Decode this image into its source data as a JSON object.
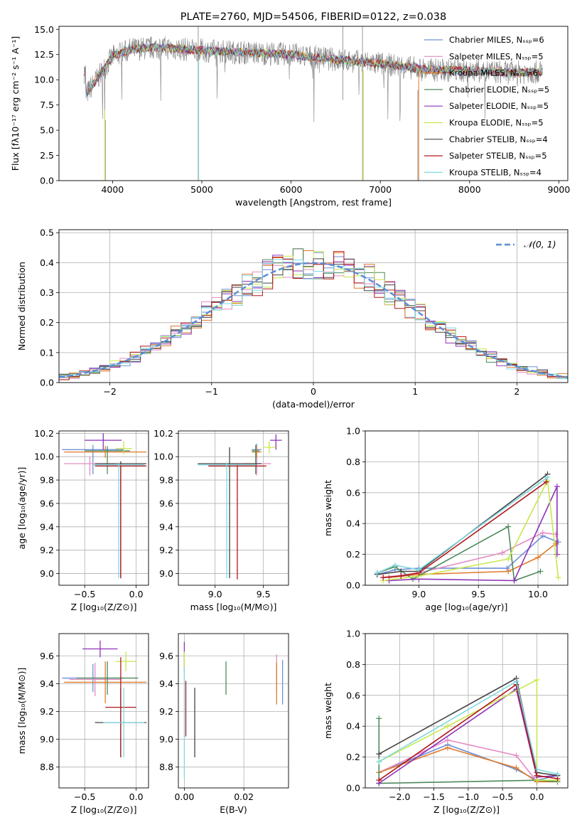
{
  "chart_data": [
    {
      "type": "line",
      "title": "PLATE=2760, MJD=54506, FIBERID=0122, z=0.038",
      "xlabel": "wavelength [Angstrom, rest frame]",
      "ylabel": "Flux [fλ10⁻¹⁷ erg cm⁻² s⁻¹ A⁻¹]",
      "xlim": [
        3400,
        9100
      ],
      "ylim": [
        0,
        15.3
      ],
      "xticks": [
        4000,
        5000,
        6000,
        7000,
        8000,
        9000
      ],
      "yticks": [
        0.0,
        2.5,
        5.0,
        7.5,
        10.0,
        12.5,
        15.0
      ],
      "legend_position": "top-right",
      "series": [
        {
          "name": "Chabrier MILES, Nₛₛₚ=6",
          "color": "#6f8fd7"
        },
        {
          "name": "Salpeter MILES, Nₛₛₚ=5",
          "color": "#e58bc4"
        },
        {
          "name": "Kroupa MILES, Nₛₛₚ=6",
          "color": "#e07a2a"
        },
        {
          "name": "Chabrier ELODIE, Nₛₛₚ=5",
          "color": "#4d8a5c"
        },
        {
          "name": "Salpeter ELODIE, Nₛₛₚ=5",
          "color": "#8e32b8"
        },
        {
          "name": "Kroupa ELODIE, Nₛₛₚ=5",
          "color": "#c7e84b"
        },
        {
          "name": "Chabrier STELIB, Nₛₛₚ=4",
          "color": "#444444"
        },
        {
          "name": "Salpeter STELIB, Nₛₛₚ=5",
          "color": "#b0181c"
        },
        {
          "name": "Kroupa STELIB, Nₛₛₚ=4",
          "color": "#7fd8e0"
        }
      ],
      "data_envelope": {
        "x": [
          3700,
          3900,
          4000,
          4200,
          4500,
          5000,
          5500,
          6000,
          6500,
          7000,
          7500,
          8000,
          8500,
          8800
        ],
        "y": [
          8.5,
          11.0,
          12.3,
          13.0,
          13.2,
          12.9,
          12.7,
          12.5,
          12.0,
          11.6,
          11.0,
          10.9,
          10.7,
          10.8
        ]
      }
    },
    {
      "type": "line",
      "xlabel": "(data-model)/error",
      "ylabel": "Normed distribution",
      "xlim": [
        -2.5,
        2.5
      ],
      "ylim": [
        0,
        0.51
      ],
      "xticks": [
        -2,
        -1,
        0,
        1,
        2
      ],
      "yticks": [
        0.0,
        0.1,
        0.2,
        0.3,
        0.4,
        0.5
      ],
      "legend_position": "top-right",
      "gaussian_label": "𝒩(0, 1)",
      "gaussian": {
        "mean": 0,
        "sigma": 1,
        "color": "#5b8fd5"
      },
      "histogram_bin_width": 0.1,
      "histogram_series_colors": [
        "#6f8fd7",
        "#e58bc4",
        "#e07a2a",
        "#4d8a5c",
        "#8e32b8",
        "#c7e84b",
        "#444444",
        "#b0181c",
        "#7fd8e0"
      ]
    },
    {
      "type": "scatter",
      "xlabel": "Z [log₁₀(Z/Z⊙)]",
      "ylabel": "age  [log₁₀(age/yr)]",
      "xlim": [
        -0.75,
        0.12
      ],
      "ylim": [
        8.9,
        10.22
      ],
      "xticks": [
        -0.5,
        0.0
      ],
      "yticks": [
        9.0,
        9.2,
        9.4,
        9.6,
        9.8,
        10.0,
        10.2
      ],
      "points": [
        {
          "x": -0.42,
          "y": 10.06,
          "xerr": 0.3,
          "yerr_low": 0.21,
          "yerr_high": 0.04,
          "color": "#6f8fd7"
        },
        {
          "x": -0.45,
          "y": 9.94,
          "xerr": 0.25,
          "yerr_low": 0.1,
          "yerr_high": 0.06,
          "color": "#e58bc4"
        },
        {
          "x": -0.3,
          "y": 10.04,
          "xerr": 0.4,
          "yerr_low": 0.05,
          "yerr_high": 0.05,
          "color": "#e07a2a"
        },
        {
          "x": -0.28,
          "y": 10.05,
          "xerr": 0.22,
          "yerr_low": 0.2,
          "yerr_high": 0.04,
          "color": "#4d8a5c"
        },
        {
          "x": -0.32,
          "y": 10.14,
          "xerr": 0.18,
          "yerr_low": 0.08,
          "yerr_high": 0.06,
          "color": "#8e32b8"
        },
        {
          "x": -0.12,
          "y": 10.07,
          "xerr": 0.08,
          "yerr_low": 0.05,
          "yerr_high": 0.06,
          "color": "#c7e84b"
        },
        {
          "x": -0.15,
          "y": 9.94,
          "xerr": 0.25,
          "yerr_low": 0.98,
          "yerr_high": 0.02,
          "color": "#444444"
        },
        {
          "x": -0.15,
          "y": 9.92,
          "xerr": 0.25,
          "yerr_low": 0.96,
          "yerr_high": 0.02,
          "color": "#b0181c"
        },
        {
          "x": -0.17,
          "y": 9.93,
          "xerr": 0.25,
          "yerr_low": 0.97,
          "yerr_high": 0.02,
          "color": "#7fd8e0"
        }
      ]
    },
    {
      "type": "scatter",
      "xlabel": "mass [log₁₀(M/M⊙)]",
      "xlim": [
        8.62,
        9.76
      ],
      "ylim": [
        8.9,
        10.22
      ],
      "xticks": [
        9.0,
        9.5
      ],
      "yticks": [
        9.0,
        9.2,
        9.4,
        9.6,
        9.8,
        10.0,
        10.2
      ],
      "points": [
        {
          "x": 9.43,
          "y": 10.06,
          "xerr": 0.05,
          "yerr_low": 0.2,
          "yerr_high": 0.05,
          "color": "#6f8fd7"
        },
        {
          "x": 9.43,
          "y": 9.94,
          "xerr": 0.15,
          "yerr_low": 0.1,
          "yerr_high": 0.05,
          "color": "#e58bc4"
        },
        {
          "x": 9.43,
          "y": 10.04,
          "xerr": 0.05,
          "yerr_low": 0.05,
          "yerr_high": 0.05,
          "color": "#e07a2a"
        },
        {
          "x": 9.42,
          "y": 10.05,
          "xerr": 0.04,
          "yerr_low": 0.2,
          "yerr_high": 0.05,
          "color": "#4d8a5c"
        },
        {
          "x": 9.63,
          "y": 10.14,
          "xerr": 0.06,
          "yerr_low": 0.08,
          "yerr_high": 0.05,
          "color": "#8e32b8"
        },
        {
          "x": 9.56,
          "y": 10.08,
          "xerr": 0.06,
          "yerr_low": 0.05,
          "yerr_high": 0.05,
          "color": "#c7e84b"
        },
        {
          "x": 9.15,
          "y": 9.94,
          "xerr": 0.33,
          "yerr_low": 0.98,
          "yerr_high": 0.14,
          "color": "#444444"
        },
        {
          "x": 9.23,
          "y": 9.92,
          "xerr": 0.3,
          "yerr_low": 0.97,
          "yerr_high": 0.02,
          "color": "#b0181c"
        },
        {
          "x": 9.12,
          "y": 9.93,
          "xerr": 0.3,
          "yerr_low": 0.97,
          "yerr_high": 0.02,
          "color": "#7fd8e0"
        }
      ]
    },
    {
      "type": "line",
      "xlabel": "age  [log₁₀(age/yr)]",
      "ylabel": "mass weight",
      "xlim": [
        8.55,
        10.25
      ],
      "ylim": [
        0,
        1.0
      ],
      "xticks": [
        9.0,
        9.5,
        10.0
      ],
      "yticks": [
        0.0,
        0.2,
        0.4,
        0.6,
        0.8,
        1.0
      ],
      "series": [
        {
          "color": "#6f8fd7",
          "x": [
            8.65,
            8.8,
            9.0,
            9.74,
            10.04,
            10.17
          ],
          "y": [
            0.07,
            0.1,
            0.11,
            0.11,
            0.32,
            0.28
          ]
        },
        {
          "color": "#e58bc4",
          "x": [
            8.7,
            9.0,
            9.7,
            10.04,
            10.15
          ],
          "y": [
            0.05,
            0.08,
            0.21,
            0.34,
            0.33
          ]
        },
        {
          "color": "#e07a2a",
          "x": [
            8.75,
            9.0,
            9.75,
            10.0,
            10.15
          ],
          "y": [
            0.05,
            0.07,
            0.09,
            0.18,
            0.27
          ]
        },
        {
          "color": "#4d8a5c",
          "x": [
            8.65,
            8.8,
            8.95,
            9.75,
            9.8,
            10.02
          ],
          "y": [
            0.08,
            0.12,
            0.04,
            0.38,
            0.03,
            0.09
          ]
        },
        {
          "color": "#8e32b8",
          "x": [
            8.75,
            9.0,
            9.8,
            10.16,
            10.16
          ],
          "y": [
            0.03,
            0.04,
            0.03,
            0.64,
            0.2
          ]
        },
        {
          "color": "#c7e84b",
          "x": [
            8.7,
            9.0,
            9.75,
            10.08,
            10.17
          ],
          "y": [
            0.03,
            0.06,
            0.17,
            0.68,
            0.05
          ]
        },
        {
          "color": "#444444",
          "x": [
            8.65,
            8.85,
            9.0,
            10.08
          ],
          "y": [
            0.07,
            0.09,
            0.09,
            0.72
          ]
        },
        {
          "color": "#b0181c",
          "x": [
            8.7,
            8.85,
            9.0,
            10.07
          ],
          "y": [
            0.05,
            0.06,
            0.08,
            0.67
          ]
        },
        {
          "color": "#7fd8e0",
          "x": [
            8.65,
            8.8,
            9.0,
            10.08
          ],
          "y": [
            0.08,
            0.13,
            0.1,
            0.7
          ]
        }
      ]
    },
    {
      "type": "scatter",
      "xlabel": "Z [log₁₀(Z/Z⊙)]",
      "ylabel": "mass [log₁₀(M/M⊙)]",
      "xlim": [
        -0.75,
        0.12
      ],
      "ylim": [
        8.65,
        9.76
      ],
      "xticks": [
        -0.5,
        0.0
      ],
      "yticks": [
        8.8,
        9.0,
        9.2,
        9.4,
        9.6
      ],
      "points": [
        {
          "x": -0.42,
          "y": 9.44,
          "xerr": 0.3,
          "yerr": 0.1,
          "color": "#6f8fd7"
        },
        {
          "x": -0.4,
          "y": 9.43,
          "xerr": 0.25,
          "yerr": 0.12,
          "color": "#e58bc4"
        },
        {
          "x": -0.3,
          "y": 9.41,
          "xerr": 0.4,
          "yerr": 0.15,
          "color": "#e07a2a"
        },
        {
          "x": -0.28,
          "y": 9.44,
          "xerr": 0.3,
          "yerr": 0.12,
          "color": "#4d8a5c"
        },
        {
          "x": -0.35,
          "y": 9.65,
          "xerr": 0.17,
          "yerr": 0.06,
          "color": "#8e32b8"
        },
        {
          "x": -0.1,
          "y": 9.56,
          "xerr": 0.1,
          "yerr": 0.07,
          "color": "#c7e84b"
        },
        {
          "x": -0.15,
          "y": 9.12,
          "xerr": 0.25,
          "yerr": 0.25,
          "color": "#444444"
        },
        {
          "x": -0.15,
          "y": 9.23,
          "xerr": 0.15,
          "yerr": 0.36,
          "color": "#b0181c"
        },
        {
          "x": -0.12,
          "y": 9.12,
          "xerr": 0.2,
          "yerr": 0.25,
          "color": "#7fd8e0"
        }
      ]
    },
    {
      "type": "scatter",
      "xlabel": "E(B-V)",
      "xlim": [
        -0.002,
        0.035
      ],
      "ylim": [
        8.65,
        9.76
      ],
      "xticks": [
        0.0,
        0.02
      ],
      "yticks": [
        8.8,
        9.0,
        9.2,
        9.4,
        9.6
      ],
      "points": [
        {
          "x": 0.033,
          "y": 9.41,
          "yerr": 0.16,
          "color": "#6f8fd7"
        },
        {
          "x": 0.031,
          "y": 9.48,
          "yerr": 0.13,
          "color": "#e58bc4"
        },
        {
          "x": 0.031,
          "y": 9.4,
          "yerr": 0.15,
          "color": "#e07a2a"
        },
        {
          "x": 0.014,
          "y": 9.44,
          "yerr": 0.12,
          "color": "#4d8a5c"
        },
        {
          "x": 0.0,
          "y": 9.6,
          "yerr": 0.1,
          "color": "#8e32b8"
        },
        {
          "x": 0.0,
          "y": 9.55,
          "yerr": 0.08,
          "color": "#c7e84b"
        },
        {
          "x": 0.0035,
          "y": 9.12,
          "yerr": 0.25,
          "color": "#444444"
        },
        {
          "x": 0.0005,
          "y": 9.22,
          "yerr": 0.2,
          "color": "#b0181c"
        },
        {
          "x": 0.0,
          "y": 9.12,
          "yerr": 0.4,
          "color": "#7fd8e0"
        }
      ]
    },
    {
      "type": "line",
      "xlabel": "Z [log₁₀(Z/Z⊙)]",
      "ylabel": "mass weight",
      "xlim": [
        -2.5,
        0.45
      ],
      "ylim": [
        0,
        1.0
      ],
      "xticks": [
        -2.0,
        -1.5,
        -1.0,
        -0.5,
        0.0
      ],
      "yticks": [
        0.0,
        0.2,
        0.4,
        0.6,
        0.8,
        1.0
      ],
      "series": [
        {
          "color": "#6f8fd7",
          "x": [
            -2.3,
            -1.3,
            -0.3,
            0.0,
            0.3
          ],
          "y": [
            0.1,
            0.28,
            0.12,
            0.05,
            0.08
          ]
        },
        {
          "color": "#e58bc4",
          "x": [
            -2.3,
            -1.3,
            -0.3,
            0.0,
            0.3
          ],
          "y": [
            0.1,
            0.31,
            0.21,
            0.04,
            0.05
          ]
        },
        {
          "color": "#e07a2a",
          "x": [
            -2.3,
            -1.3,
            -0.3,
            0.0,
            0.3
          ],
          "y": [
            0.1,
            0.26,
            0.13,
            0.04,
            0.04
          ]
        },
        {
          "color": "#4d8a5c",
          "x": [
            -2.3,
            -2.3,
            0.0,
            0.3
          ],
          "y": [
            0.45,
            0.03,
            0.05,
            0.04
          ]
        },
        {
          "color": "#8e32b8",
          "x": [
            -2.3,
            -0.3,
            0.0,
            0.3
          ],
          "y": [
            0.03,
            0.64,
            0.07,
            0.08
          ]
        },
        {
          "color": "#c7e84b",
          "x": [
            -2.3,
            -1.3,
            0.0,
            0.0,
            0.3
          ],
          "y": [
            0.17,
            0.4,
            0.7,
            0.05,
            0.05
          ]
        },
        {
          "color": "#444444",
          "x": [
            -2.3,
            -0.3,
            0.0,
            0.3
          ],
          "y": [
            0.22,
            0.71,
            0.1,
            0.08
          ]
        },
        {
          "color": "#b0181c",
          "x": [
            -2.3,
            -0.3,
            0.0,
            0.3
          ],
          "y": [
            0.05,
            0.67,
            0.08,
            0.06
          ]
        },
        {
          "color": "#7fd8e0",
          "x": [
            -2.3,
            -0.3,
            0.0,
            0.3
          ],
          "y": [
            0.17,
            0.69,
            0.12,
            0.09
          ]
        }
      ]
    }
  ]
}
